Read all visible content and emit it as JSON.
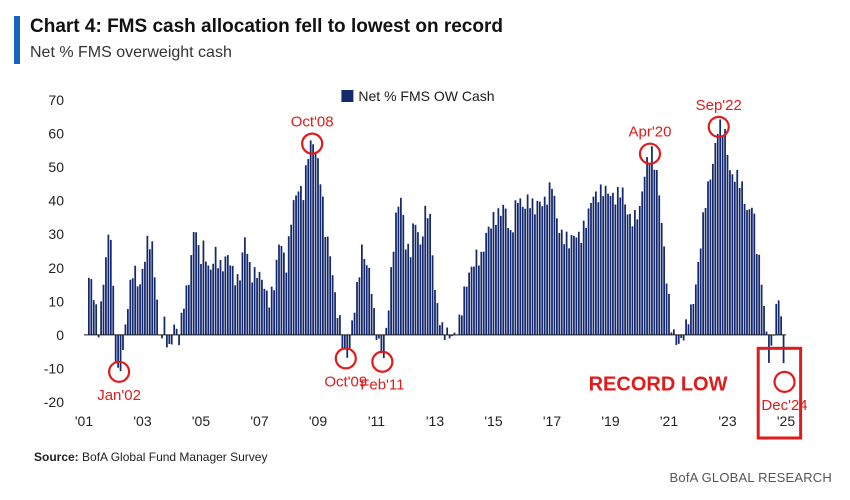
{
  "header": {
    "title": "Chart 4: FMS cash allocation fell to lowest on record",
    "subtitle": "Net % FMS overweight cash"
  },
  "footer": {
    "source_label": "Source:",
    "source_text": "BofA Global Fund Manager Survey",
    "brand": "BofA GLOBAL RESEARCH"
  },
  "colors": {
    "bars": "#14286e",
    "annotation": "#e01b1b",
    "axis_text": "#222222"
  },
  "chart_data": {
    "type": "bar",
    "title": "Chart 4: FMS cash allocation fell to lowest on record",
    "subtitle": "Net % FMS overweight cash",
    "legend": "Net % FMS OW Cash",
    "legend_position": "top-center",
    "ylim": [
      -20,
      70
    ],
    "yticks": [
      70,
      60,
      50,
      40,
      30,
      20,
      10,
      0,
      -10,
      -20
    ],
    "xtick_labels": [
      "'01",
      "'03",
      "'05",
      "'07",
      "'09",
      "'11",
      "'13",
      "'15",
      "'17",
      "'19",
      "'21",
      "'23",
      "'25"
    ],
    "x_start": "2001-03",
    "x_end": "2024-12",
    "grid": false,
    "series_anchor_points": [
      [
        2001.2,
        17
      ],
      [
        2001.35,
        10
      ],
      [
        2001.5,
        2
      ],
      [
        2001.7,
        20
      ],
      [
        2001.9,
        32
      ],
      [
        2002.0,
        12
      ],
      [
        2002.1,
        -9
      ],
      [
        2002.2,
        -11
      ],
      [
        2002.35,
        -4
      ],
      [
        2002.5,
        8
      ],
      [
        2002.7,
        22
      ],
      [
        2002.9,
        14
      ],
      [
        2003.05,
        20
      ],
      [
        2003.2,
        29
      ],
      [
        2003.35,
        27
      ],
      [
        2003.5,
        10
      ],
      [
        2003.6,
        -4
      ],
      [
        2003.75,
        3
      ],
      [
        2003.9,
        -4
      ],
      [
        2004.1,
        3
      ],
      [
        2004.25,
        -3
      ],
      [
        2004.4,
        10
      ],
      [
        2004.6,
        18
      ],
      [
        2004.8,
        33
      ],
      [
        2004.95,
        22
      ],
      [
        2005.1,
        28
      ],
      [
        2005.3,
        17
      ],
      [
        2005.5,
        24
      ],
      [
        2005.7,
        21
      ],
      [
        2005.9,
        23
      ],
      [
        2006.1,
        18
      ],
      [
        2006.3,
        17
      ],
      [
        2006.5,
        28
      ],
      [
        2006.7,
        18
      ],
      [
        2006.9,
        20
      ],
      [
        2007.1,
        15
      ],
      [
        2007.3,
        10
      ],
      [
        2007.5,
        16
      ],
      [
        2007.7,
        28
      ],
      [
        2007.9,
        20
      ],
      [
        2008.1,
        37
      ],
      [
        2008.3,
        42
      ],
      [
        2008.5,
        43
      ],
      [
        2008.65,
        55
      ],
      [
        2008.8,
        57
      ],
      [
        2008.95,
        53
      ],
      [
        2009.1,
        47
      ],
      [
        2009.25,
        32
      ],
      [
        2009.4,
        24
      ],
      [
        2009.6,
        10
      ],
      [
        2009.75,
        5
      ],
      [
        2009.9,
        -6
      ],
      [
        2010.05,
        -8
      ],
      [
        2010.2,
        6
      ],
      [
        2010.35,
        16
      ],
      [
        2010.5,
        25
      ],
      [
        2010.65,
        20
      ],
      [
        2010.8,
        18
      ],
      [
        2010.95,
        4
      ],
      [
        2011.1,
        -4
      ],
      [
        2011.25,
        -8
      ],
      [
        2011.4,
        8
      ],
      [
        2011.55,
        25
      ],
      [
        2011.7,
        37
      ],
      [
        2011.85,
        40
      ],
      [
        2012.0,
        28
      ],
      [
        2012.15,
        25
      ],
      [
        2012.3,
        34
      ],
      [
        2012.5,
        26
      ],
      [
        2012.7,
        40
      ],
      [
        2012.85,
        33
      ],
      [
        2013.0,
        12
      ],
      [
        2013.2,
        4
      ],
      [
        2013.4,
        0
      ],
      [
        2013.6,
        -2
      ],
      [
        2013.8,
        4
      ],
      [
        2014.0,
        12
      ],
      [
        2014.2,
        18
      ],
      [
        2014.4,
        25
      ],
      [
        2014.6,
        22
      ],
      [
        2014.8,
        31
      ],
      [
        2015.0,
        36
      ],
      [
        2015.2,
        35
      ],
      [
        2015.4,
        38
      ],
      [
        2015.6,
        30
      ],
      [
        2015.8,
        40
      ],
      [
        2016.0,
        38
      ],
      [
        2016.2,
        42
      ],
      [
        2016.4,
        36
      ],
      [
        2016.6,
        40
      ],
      [
        2016.8,
        41
      ],
      [
        2017.0,
        44
      ],
      [
        2017.2,
        33
      ],
      [
        2017.4,
        30
      ],
      [
        2017.6,
        26
      ],
      [
        2017.8,
        31
      ],
      [
        2018.0,
        30
      ],
      [
        2018.2,
        33
      ],
      [
        2018.4,
        43
      ],
      [
        2018.6,
        42
      ],
      [
        2018.8,
        42
      ],
      [
        2019.0,
        43
      ],
      [
        2019.2,
        41
      ],
      [
        2019.4,
        42
      ],
      [
        2019.6,
        37
      ],
      [
        2019.8,
        34
      ],
      [
        2020.0,
        36
      ],
      [
        2020.1,
        45
      ],
      [
        2020.25,
        53
      ],
      [
        2020.4,
        54
      ],
      [
        2020.5,
        50
      ],
      [
        2020.65,
        44
      ],
      [
        2020.8,
        30
      ],
      [
        2020.95,
        14
      ],
      [
        2021.1,
        0
      ],
      [
        2021.25,
        -2
      ],
      [
        2021.4,
        -1
      ],
      [
        2021.6,
        2
      ],
      [
        2021.8,
        8
      ],
      [
        2022.0,
        22
      ],
      [
        2022.2,
        36
      ],
      [
        2022.35,
        44
      ],
      [
        2022.5,
        52
      ],
      [
        2022.65,
        62
      ],
      [
        2022.8,
        61
      ],
      [
        2022.95,
        58
      ],
      [
        2023.1,
        49
      ],
      [
        2023.3,
        47
      ],
      [
        2023.5,
        43
      ],
      [
        2023.7,
        37
      ],
      [
        2023.85,
        40
      ],
      [
        2024.0,
        25
      ],
      [
        2024.15,
        18
      ],
      [
        2024.3,
        5
      ],
      [
        2024.45,
        -10
      ],
      [
        2024.6,
        2
      ],
      [
        2024.75,
        12
      ],
      [
        2024.85,
        5
      ],
      [
        2024.95,
        -14
      ]
    ],
    "annotations": [
      {
        "label": "Jan'02",
        "x": 2002.2,
        "y": -11,
        "position": "below"
      },
      {
        "label": "Oct'08",
        "x": 2008.8,
        "y": 57,
        "position": "above"
      },
      {
        "label": "Oct'09",
        "x": 2009.95,
        "y": -7,
        "position": "below"
      },
      {
        "label": "Feb'11",
        "x": 2011.2,
        "y": -8,
        "position": "below"
      },
      {
        "label": "Apr'20",
        "x": 2020.35,
        "y": 54,
        "position": "above"
      },
      {
        "label": "Sep'22",
        "x": 2022.7,
        "y": 62,
        "position": "above"
      },
      {
        "label": "Dec'24",
        "x": 2024.95,
        "y": -14,
        "position": "below"
      }
    ],
    "callout": "RECORD LOW"
  }
}
